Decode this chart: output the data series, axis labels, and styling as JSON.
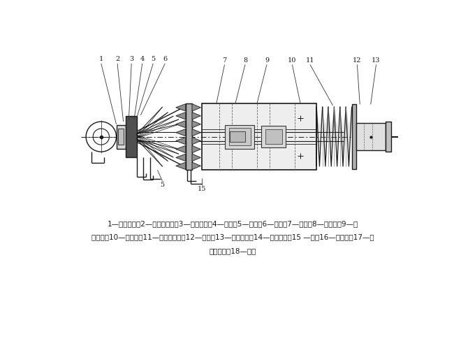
{
  "bg_color": "#ffffff",
  "line_color": "#1a1a1a",
  "gray_dark": "#404040",
  "gray_mid": "#808080",
  "gray_light": "#b0b0b0",
  "figure_width": 6.5,
  "figure_height": 4.88,
  "caption_line1": "1—限位装置；2—防带杆装置；3—上端法兰；4—挡环；5—转环；6—芯杆；7—键条；8—加压台；9—导",
  "caption_line2": "向斜块；10—分水盘；11—下减震装置；12—方头；13—钒杆销轴；14—减震总成；15 —杆；16—中间杆；17—防",
  "caption_line3": "带杆托盘；18—扁头",
  "caption_fontsize": 7.5
}
